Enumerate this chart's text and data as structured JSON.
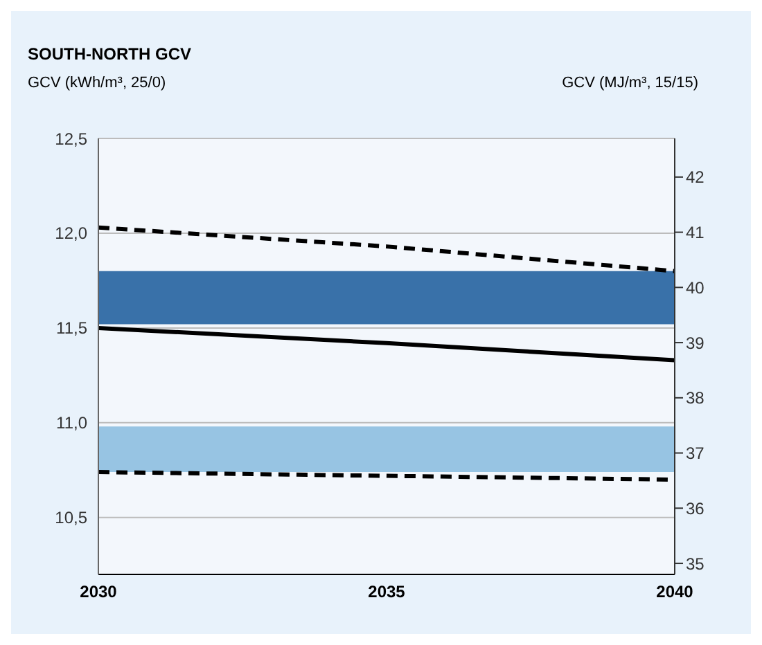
{
  "chart_data": {
    "type": "line",
    "title": "SOUTH-NORTH GCV",
    "ylabel": "GCV (kWh/m³, 25/0)",
    "y2label": "GCV (MJ/m³, 15/15)",
    "x": [
      2030,
      2035,
      2040
    ],
    "series": [
      {
        "color": "#000000",
        "line_style": "dashed",
        "values": [
          12.03,
          11.93,
          11.8
        ]
      },
      {
        "color": "#000000",
        "line_style": "solid",
        "values": [
          11.5,
          11.42,
          11.33
        ]
      },
      {
        "color": "#000000",
        "line_style": "dashed",
        "values": [
          10.74,
          10.72,
          10.7
        ]
      }
    ],
    "xlim": [
      2030,
      2040
    ],
    "xticks": [
      2030,
      2035,
      2040
    ],
    "ylim": [
      10.2,
      12.5
    ],
    "yticks": [
      {
        "value": 10.5,
        "label": "10,5"
      },
      {
        "value": 11,
        "label": "11,0"
      },
      {
        "value": 11.5,
        "label": "11,5"
      },
      {
        "value": 12,
        "label": "12,0"
      },
      {
        "value": 12.5,
        "label": "12,5"
      }
    ],
    "y2lim": [
      34.8,
      42.7
    ],
    "y2ticks": [
      35,
      36,
      37,
      38,
      39,
      40,
      41,
      42
    ],
    "bands": [
      {
        "axis": "y",
        "from": 11.52,
        "to": 11.8,
        "color": "#0a4f94"
      },
      {
        "axis": "y",
        "from": 10.74,
        "to": 10.98,
        "color": "#7fb6dc"
      }
    ],
    "grid": "y",
    "marker": "none"
  }
}
